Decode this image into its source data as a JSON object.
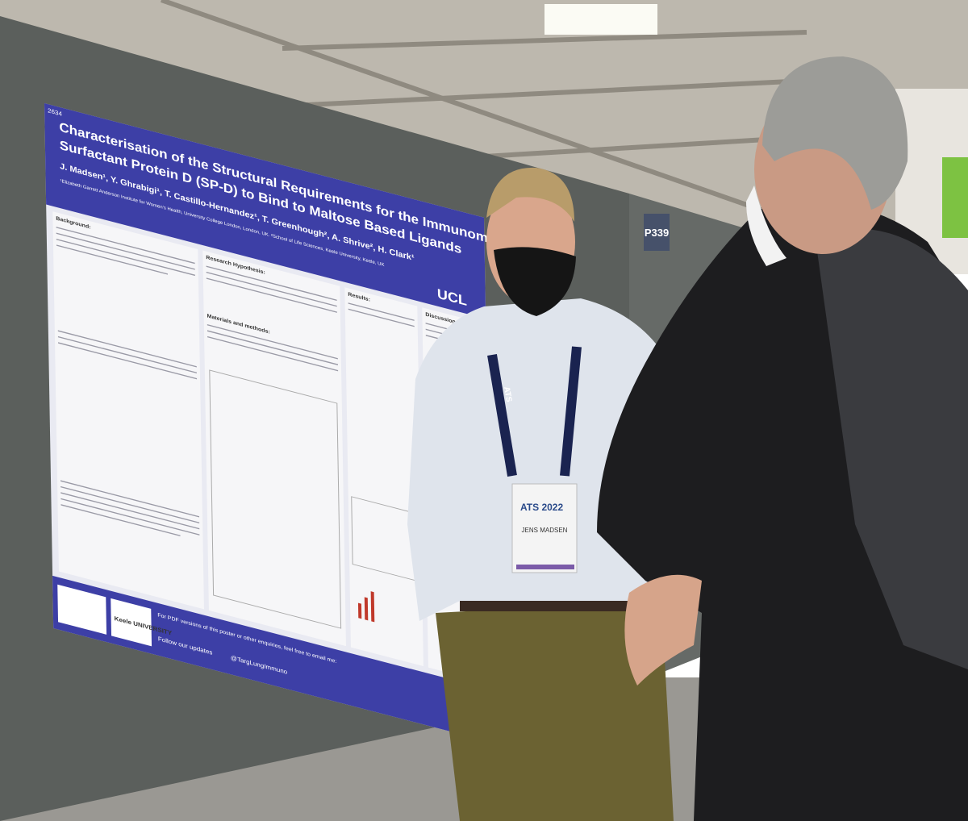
{
  "poster": {
    "number": "2634",
    "title_lines": [
      "Characterisation of the Structural Requirements for the Immunomodulatory",
      "Surfactant Protein D (SP-D) to Bind to Maltose Based Ligands"
    ],
    "authors": "J. Madsen¹, Y. Ghrabigi¹, T. Castillo-Hernandez¹, T. Greenhough², A. Shrive², H. Clark¹",
    "affiliation": "¹Elizabeth Garrett Anderson Institute for Women's Health, University College London, London, UK. ²School of Life Sciences, Keele University, Keele, UK",
    "logo": "UCL",
    "sections": [
      "Background:",
      "Research Hypothesis:",
      "Materials and methods:",
      "Results:",
      "Discussion:"
    ],
    "footer": {
      "pdf_note": "For PDF versions of this poster or other enquiries, feel free to email me:",
      "follow": "Follow our updates",
      "handle": "@TargLungImmuno",
      "keele": "Keele UNIVERSITY"
    }
  },
  "booth": "P339",
  "badge": {
    "event": "ATS 2022",
    "name": "JENS MADSEN"
  },
  "lanyard": "ATS"
}
